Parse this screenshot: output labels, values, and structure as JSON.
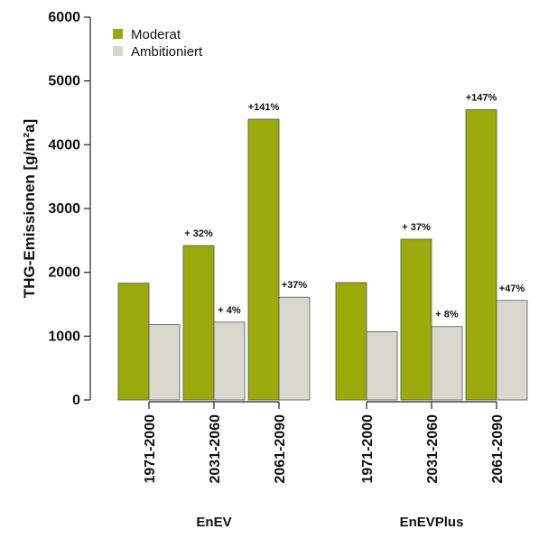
{
  "chart_data": {
    "type": "bar",
    "title": "",
    "xlabel": "",
    "ylabel": "THG-Emissionen [g/m²a]",
    "ylim": [
      0,
      6000
    ],
    "yticks": [
      0,
      1000,
      2000,
      3000,
      4000,
      5000,
      6000
    ],
    "grid": false,
    "legend_placement": "top-left",
    "groups": [
      {
        "name": "EnEV",
        "categories": [
          "1971-2000",
          "2031-2060",
          "2061-2090"
        ]
      },
      {
        "name": "EnEVPlus",
        "categories": [
          "1971-2000",
          "2031-2060",
          "2061-2090"
        ]
      }
    ],
    "series": [
      {
        "name": "Moderat",
        "color": "#9aaa0a",
        "values": [
          1830,
          2420,
          4400,
          1840,
          2520,
          4550
        ],
        "annotations": [
          "",
          "+ 32%",
          "+141%",
          "",
          "+ 37%",
          "+147%"
        ]
      },
      {
        "name": "Ambitioniert",
        "color": "#d9d8ce",
        "values": [
          1180,
          1220,
          1610,
          1070,
          1150,
          1560
        ],
        "annotations": [
          "",
          "+ 4%",
          "+37%",
          "",
          "+ 8%",
          "+47%"
        ]
      }
    ]
  }
}
